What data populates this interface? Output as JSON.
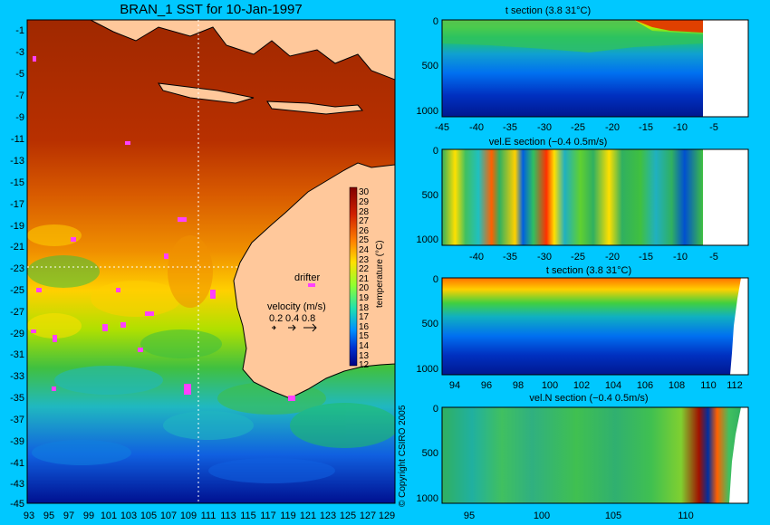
{
  "colors": {
    "background": "#00c8ff",
    "land": "#ffc89b",
    "coast": "#000000",
    "drifter": "#ff40ff"
  },
  "map": {
    "title": "BRAN_1 SST for 10-Jan-1997",
    "lon_range": [
      93,
      130
    ],
    "lat_range": [
      -45,
      0
    ],
    "lat_ticks": [
      "-1",
      "-3",
      "-5",
      "-7",
      "-9",
      "-11",
      "-13",
      "-15",
      "-17",
      "-19",
      "-21",
      "-23",
      "-25",
      "-27",
      "-29",
      "-31",
      "-33",
      "-35",
      "-37",
      "-39",
      "-41",
      "-43",
      "-45"
    ],
    "lon_ticks": [
      "93",
      "95",
      "97",
      "99",
      "101",
      "103",
      "105",
      "107",
      "109",
      "111",
      "113",
      "115",
      "117",
      "119",
      "121",
      "123",
      "125",
      "127",
      "129"
    ],
    "drifter_label": "drifter",
    "velocity_title": "velocity (m/s)",
    "velocity_values": [
      "0.2",
      "0.4",
      "0.8"
    ],
    "colorbar_label": "temperature (°C)",
    "colorbar_ticks": [
      "30",
      "29",
      "28",
      "27",
      "26",
      "25",
      "24",
      "23",
      "22",
      "21",
      "20",
      "19",
      "18",
      "17",
      "16",
      "15",
      "14",
      "13",
      "12"
    ],
    "section_lines": {
      "lon": 110,
      "lat": -23
    }
  },
  "copyright": "© Copyright CSIRO 2005",
  "panels": [
    {
      "title": "t section (3.8      31°C)",
      "y_ticks": [
        "0",
        "500",
        "1000"
      ],
      "x_ticks": [
        "-45",
        "-40",
        "-35",
        "-30",
        "-25",
        "-20",
        "-15",
        "-10",
        "-5"
      ]
    },
    {
      "title": "vel.E section (−0.4      0.5m/s)",
      "y_ticks": [
        "0",
        "500",
        "1000"
      ],
      "x_ticks": [
        "-40",
        "-35",
        "-30",
        "-25",
        "-20",
        "-15",
        "-10",
        "-5"
      ]
    },
    {
      "title": "t section (3.8      31°C)",
      "y_ticks": [
        "0",
        "500",
        "1000"
      ],
      "x_ticks": [
        "94",
        "96",
        "98",
        "100",
        "102",
        "104",
        "106",
        "108",
        "110",
        "112"
      ]
    },
    {
      "title": "vel.N section (−0.4      0.5m/s)",
      "y_ticks": [
        "0",
        "500",
        "1000"
      ],
      "x_ticks": [
        "95",
        "100",
        "105",
        "110"
      ]
    }
  ]
}
